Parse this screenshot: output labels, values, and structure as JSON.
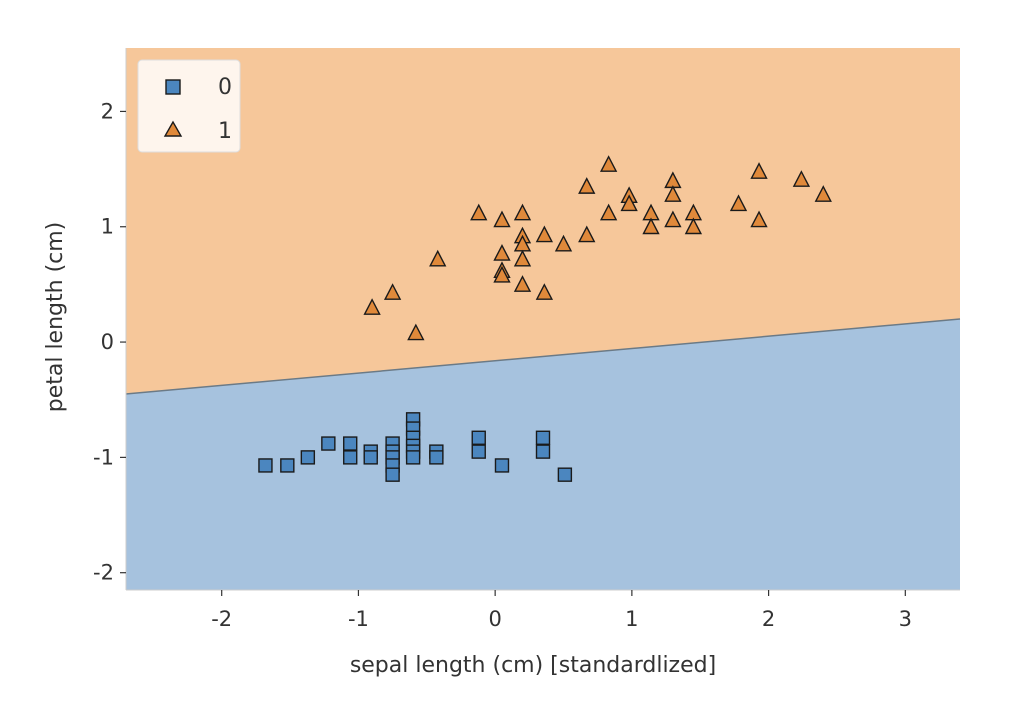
{
  "chart_data": {
    "type": "scatter",
    "title": "",
    "xlabel": "sepal length (cm) [standardlized]",
    "ylabel": "petal length (cm)",
    "xlim": [
      -2.7,
      3.4
    ],
    "ylim": [
      -2.15,
      2.55
    ],
    "xticks": [
      -2,
      -1,
      0,
      1,
      2,
      3
    ],
    "yticks": [
      2,
      1,
      0,
      -1,
      -2
    ],
    "legend_position": "top-left",
    "grid": false,
    "decision_boundary": {
      "line": [
        [
          -2.7,
          -0.45
        ],
        [
          3.4,
          0.2
        ]
      ],
      "colors": {
        "class_0": "#a6c2de",
        "class_1": "#f6c79a"
      }
    },
    "series": [
      {
        "name": "0",
        "marker": "square",
        "color": "#4b86bf",
        "points": [
          [
            -1.68,
            -1.07
          ],
          [
            -1.52,
            -1.07
          ],
          [
            -1.37,
            -1.0
          ],
          [
            -1.22,
            -0.88
          ],
          [
            -1.06,
            -0.88
          ],
          [
            -1.06,
            -1.0
          ],
          [
            -0.91,
            -0.95
          ],
          [
            -0.91,
            -1.0
          ],
          [
            -0.75,
            -0.88
          ],
          [
            -0.75,
            -0.95
          ],
          [
            -0.75,
            -1.0
          ],
          [
            -0.75,
            -1.07
          ],
          [
            -0.75,
            -1.15
          ],
          [
            -0.6,
            -0.67
          ],
          [
            -0.6,
            -0.75
          ],
          [
            -0.6,
            -0.83
          ],
          [
            -0.6,
            -0.9
          ],
          [
            -0.6,
            -0.95
          ],
          [
            -0.6,
            -1.0
          ],
          [
            -0.43,
            -0.95
          ],
          [
            -0.43,
            -1.0
          ],
          [
            -0.12,
            -0.83
          ],
          [
            -0.12,
            -0.95
          ],
          [
            0.05,
            -1.07
          ],
          [
            0.35,
            -0.83
          ],
          [
            0.35,
            -0.95
          ],
          [
            0.51,
            -1.15
          ]
        ]
      },
      {
        "name": "1",
        "marker": "triangle",
        "color": "#e0893a",
        "points": [
          [
            -0.9,
            0.3
          ],
          [
            -0.75,
            0.43
          ],
          [
            -0.58,
            0.08
          ],
          [
            -0.42,
            0.72
          ],
          [
            -0.12,
            1.12
          ],
          [
            0.05,
            1.06
          ],
          [
            0.05,
            0.77
          ],
          [
            0.05,
            0.62
          ],
          [
            0.05,
            0.58
          ],
          [
            0.2,
            1.12
          ],
          [
            0.2,
            0.92
          ],
          [
            0.2,
            0.85
          ],
          [
            0.2,
            0.72
          ],
          [
            0.2,
            0.5
          ],
          [
            0.36,
            0.93
          ],
          [
            0.36,
            0.43
          ],
          [
            0.5,
            0.85
          ],
          [
            0.67,
            1.35
          ],
          [
            0.67,
            0.93
          ],
          [
            0.83,
            1.54
          ],
          [
            0.83,
            1.12
          ],
          [
            0.98,
            1.27
          ],
          [
            0.98,
            1.2
          ],
          [
            1.14,
            1.12
          ],
          [
            1.14,
            1.0
          ],
          [
            1.3,
            1.4
          ],
          [
            1.3,
            1.28
          ],
          [
            1.3,
            1.06
          ],
          [
            1.45,
            1.12
          ],
          [
            1.45,
            1.0
          ],
          [
            1.78,
            1.2
          ],
          [
            1.93,
            1.48
          ],
          [
            1.93,
            1.06
          ],
          [
            2.24,
            1.41
          ],
          [
            2.4,
            1.28
          ]
        ]
      }
    ]
  }
}
